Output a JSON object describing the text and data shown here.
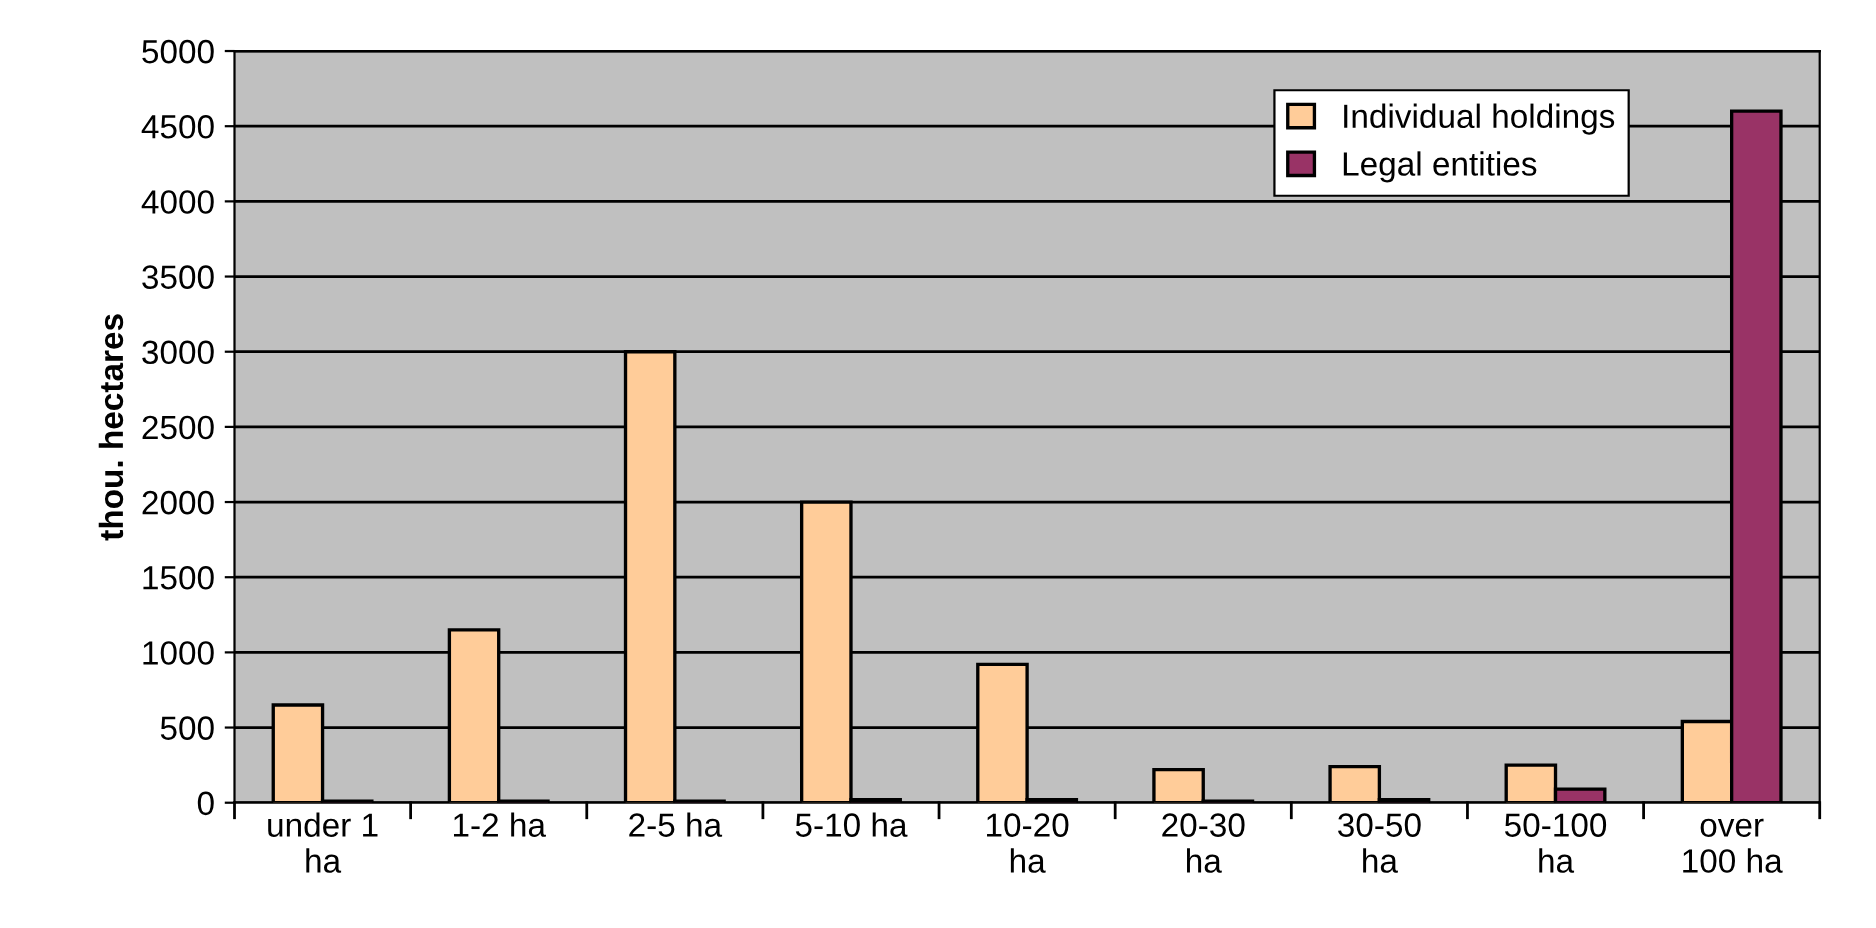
{
  "chart_data": {
    "type": "bar",
    "ylabel": "thou. hectares",
    "categories": [
      "under 1\nha",
      "1-2 ha",
      "2-5 ha",
      "5-10 ha",
      "10-20\nha",
      "20-30\nha",
      "30-50\nha",
      "50-100\nha",
      "over\n100 ha"
    ],
    "series": [
      {
        "name": "Individual holdings",
        "color": "#ffcc99",
        "values": [
          650,
          1150,
          3000,
          2000,
          920,
          220,
          240,
          250,
          540
        ]
      },
      {
        "name": "Legal entities",
        "color": "#993366",
        "values": [
          10,
          10,
          10,
          20,
          20,
          10,
          20,
          90,
          4600
        ]
      }
    ],
    "ylim": [
      0,
      5000
    ],
    "yticks": [
      0,
      500,
      1000,
      1500,
      2000,
      2500,
      3000,
      3500,
      4000,
      4500,
      5000
    ],
    "grid": "y",
    "legend": "top right"
  }
}
